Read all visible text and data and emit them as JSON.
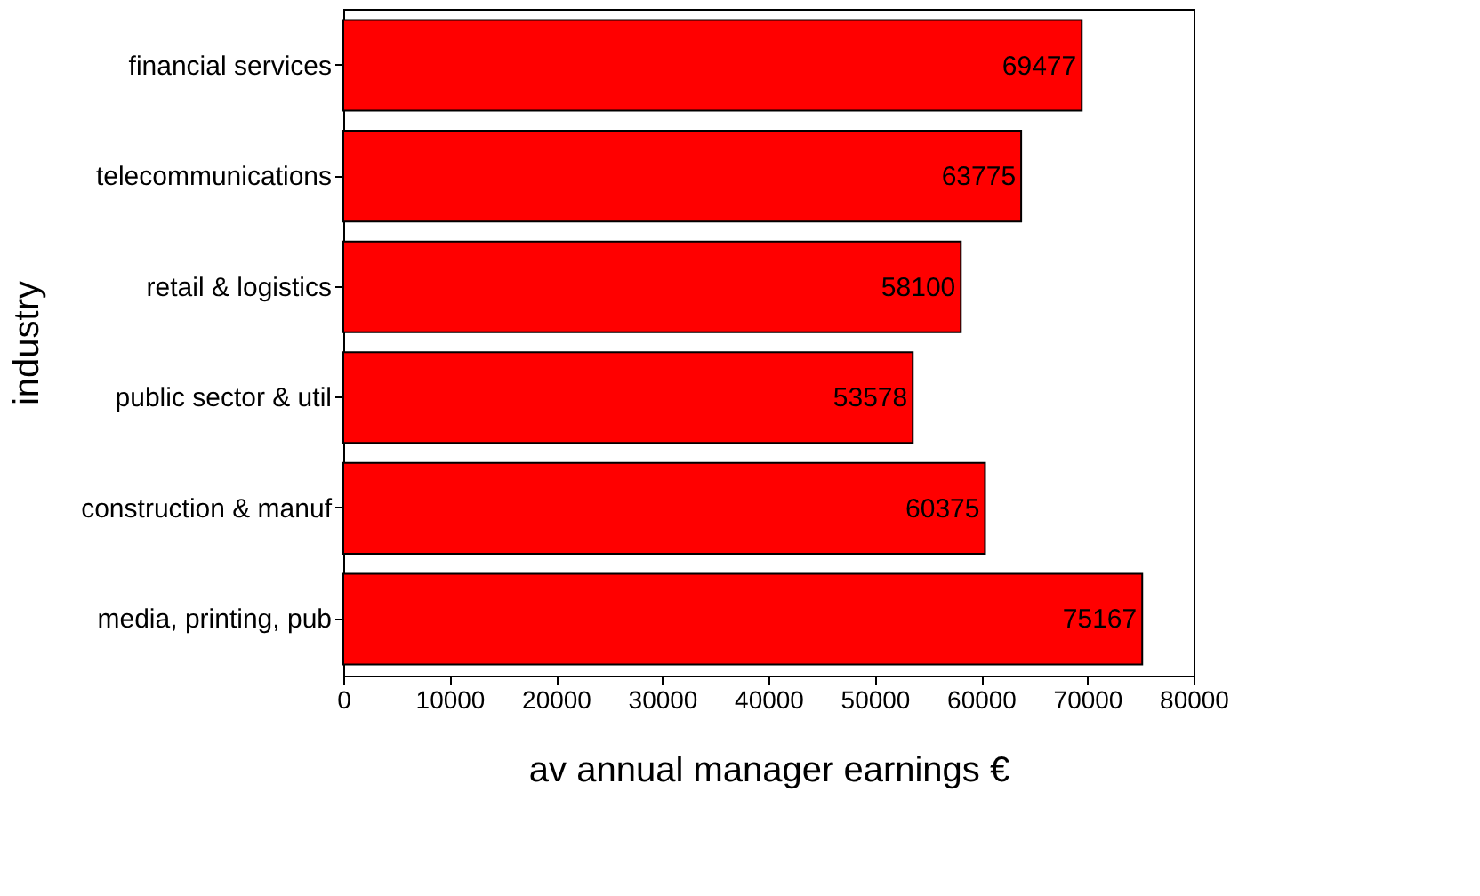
{
  "chart_data": {
    "type": "bar",
    "orientation": "horizontal",
    "xlabel": "av annual manager earnings €",
    "ylabel": "industry",
    "categories": [
      "financial services",
      "telecommunications",
      "retail & logistics",
      "public sector & util",
      "construction & manuf",
      "media, printing, pub"
    ],
    "values": [
      69477,
      63775,
      58100,
      53578,
      60375,
      75167
    ],
    "color": "#ff0000",
    "data_labels": true,
    "xlim": [
      0,
      80000
    ],
    "xticks": [
      0,
      10000,
      20000,
      30000,
      40000,
      50000,
      60000,
      70000,
      80000
    ]
  }
}
